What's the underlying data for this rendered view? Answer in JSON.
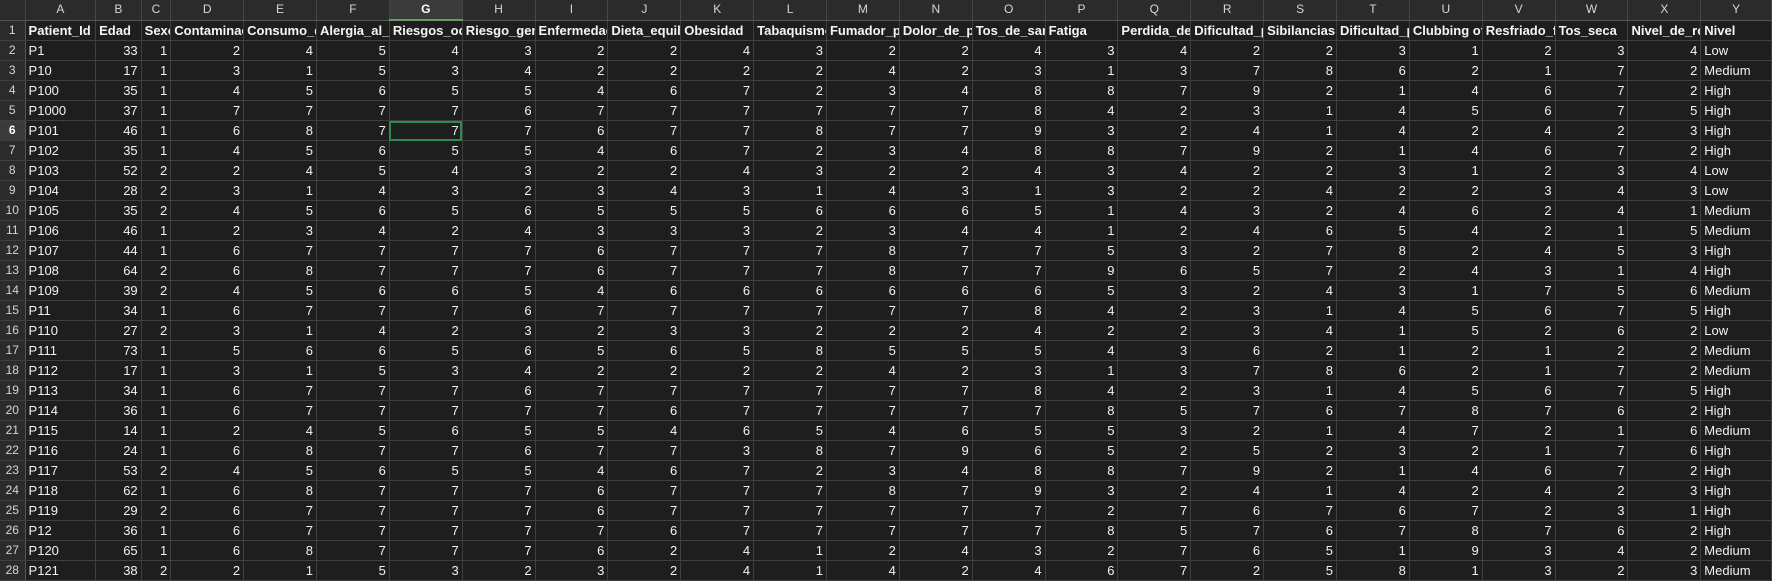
{
  "columns": [
    "A",
    "B",
    "C",
    "D",
    "E",
    "F",
    "G",
    "H",
    "I",
    "J",
    "K",
    "L",
    "M",
    "N",
    "O",
    "P",
    "Q",
    "R",
    "S",
    "T",
    "U",
    "V",
    "W",
    "X",
    "Y"
  ],
  "active_column": "G",
  "active_row": 6,
  "headers": [
    "Patient_Id",
    "Edad",
    "Sexo",
    "Contaminac",
    "Consumo_d",
    "Alergia_al_p",
    "Riesgos_ocu",
    "Riesgo_gen",
    "Enfermedad",
    "Dieta_equili",
    "Obesidad",
    "Tabaquismo",
    "Fumador_p",
    "Dolor_de_p",
    "Tos_de_san",
    "Fatiga",
    "Perdida_de",
    "Dificultad_p",
    "Sibilancias",
    "Dificultad_p",
    "Clubbing of",
    "Resfriado_fr",
    "Tos_seca",
    "Nivel_de_ro",
    "Nivel"
  ],
  "rows": [
    [
      "P1",
      "33",
      "1",
      "2",
      "4",
      "5",
      "4",
      "3",
      "2",
      "2",
      "4",
      "3",
      "2",
      "2",
      "4",
      "3",
      "4",
      "2",
      "2",
      "3",
      "1",
      "2",
      "3",
      "4",
      "Low"
    ],
    [
      "P10",
      "17",
      "1",
      "3",
      "1",
      "5",
      "3",
      "4",
      "2",
      "2",
      "2",
      "2",
      "4",
      "2",
      "3",
      "1",
      "3",
      "7",
      "8",
      "6",
      "2",
      "1",
      "7",
      "2",
      "Medium"
    ],
    [
      "P100",
      "35",
      "1",
      "4",
      "5",
      "6",
      "5",
      "5",
      "4",
      "6",
      "7",
      "2",
      "3",
      "4",
      "8",
      "8",
      "7",
      "9",
      "2",
      "1",
      "4",
      "6",
      "7",
      "2",
      "High"
    ],
    [
      "P1000",
      "37",
      "1",
      "7",
      "7",
      "7",
      "7",
      "6",
      "7",
      "7",
      "7",
      "7",
      "7",
      "7",
      "8",
      "4",
      "2",
      "3",
      "1",
      "4",
      "5",
      "6",
      "7",
      "5",
      "High"
    ],
    [
      "P101",
      "46",
      "1",
      "6",
      "8",
      "7",
      "7",
      "7",
      "6",
      "7",
      "7",
      "8",
      "7",
      "7",
      "9",
      "3",
      "2",
      "4",
      "1",
      "4",
      "2",
      "4",
      "2",
      "3",
      "High"
    ],
    [
      "P102",
      "35",
      "1",
      "4",
      "5",
      "6",
      "5",
      "5",
      "4",
      "6",
      "7",
      "2",
      "3",
      "4",
      "8",
      "8",
      "7",
      "9",
      "2",
      "1",
      "4",
      "6",
      "7",
      "2",
      "High"
    ],
    [
      "P103",
      "52",
      "2",
      "2",
      "4",
      "5",
      "4",
      "3",
      "2",
      "2",
      "4",
      "3",
      "2",
      "2",
      "4",
      "3",
      "4",
      "2",
      "2",
      "3",
      "1",
      "2",
      "3",
      "4",
      "Low"
    ],
    [
      "P104",
      "28",
      "2",
      "3",
      "1",
      "4",
      "3",
      "2",
      "3",
      "4",
      "3",
      "1",
      "4",
      "3",
      "1",
      "3",
      "2",
      "2",
      "4",
      "2",
      "2",
      "3",
      "4",
      "3",
      "Low"
    ],
    [
      "P105",
      "35",
      "2",
      "4",
      "5",
      "6",
      "5",
      "6",
      "5",
      "5",
      "5",
      "6",
      "6",
      "6",
      "5",
      "1",
      "4",
      "3",
      "2",
      "4",
      "6",
      "2",
      "4",
      "1",
      "Medium"
    ],
    [
      "P106",
      "46",
      "1",
      "2",
      "3",
      "4",
      "2",
      "4",
      "3",
      "3",
      "3",
      "2",
      "3",
      "4",
      "4",
      "1",
      "2",
      "4",
      "6",
      "5",
      "4",
      "2",
      "1",
      "5",
      "Medium"
    ],
    [
      "P107",
      "44",
      "1",
      "6",
      "7",
      "7",
      "7",
      "7",
      "6",
      "7",
      "7",
      "7",
      "8",
      "7",
      "7",
      "5",
      "3",
      "2",
      "7",
      "8",
      "2",
      "4",
      "5",
      "3",
      "High"
    ],
    [
      "P108",
      "64",
      "2",
      "6",
      "8",
      "7",
      "7",
      "7",
      "6",
      "7",
      "7",
      "7",
      "8",
      "7",
      "7",
      "9",
      "6",
      "5",
      "7",
      "2",
      "4",
      "3",
      "1",
      "4",
      "High"
    ],
    [
      "P109",
      "39",
      "2",
      "4",
      "5",
      "6",
      "6",
      "5",
      "4",
      "6",
      "6",
      "6",
      "6",
      "6",
      "6",
      "5",
      "3",
      "2",
      "4",
      "3",
      "1",
      "7",
      "5",
      "6",
      "Medium"
    ],
    [
      "P11",
      "34",
      "1",
      "6",
      "7",
      "7",
      "7",
      "6",
      "7",
      "7",
      "7",
      "7",
      "7",
      "7",
      "8",
      "4",
      "2",
      "3",
      "1",
      "4",
      "5",
      "6",
      "7",
      "5",
      "High"
    ],
    [
      "P110",
      "27",
      "2",
      "3",
      "1",
      "4",
      "2",
      "3",
      "2",
      "3",
      "3",
      "2",
      "2",
      "2",
      "4",
      "2",
      "2",
      "3",
      "4",
      "1",
      "5",
      "2",
      "6",
      "2",
      "Low"
    ],
    [
      "P111",
      "73",
      "1",
      "5",
      "6",
      "6",
      "5",
      "6",
      "5",
      "6",
      "5",
      "8",
      "5",
      "5",
      "5",
      "4",
      "3",
      "6",
      "2",
      "1",
      "2",
      "1",
      "2",
      "2",
      "Medium"
    ],
    [
      "P112",
      "17",
      "1",
      "3",
      "1",
      "5",
      "3",
      "4",
      "2",
      "2",
      "2",
      "2",
      "4",
      "2",
      "3",
      "1",
      "3",
      "7",
      "8",
      "6",
      "2",
      "1",
      "7",
      "2",
      "Medium"
    ],
    [
      "P113",
      "34",
      "1",
      "6",
      "7",
      "7",
      "7",
      "6",
      "7",
      "7",
      "7",
      "7",
      "7",
      "7",
      "8",
      "4",
      "2",
      "3",
      "1",
      "4",
      "5",
      "6",
      "7",
      "5",
      "High"
    ],
    [
      "P114",
      "36",
      "1",
      "6",
      "7",
      "7",
      "7",
      "7",
      "7",
      "6",
      "7",
      "7",
      "7",
      "7",
      "7",
      "8",
      "5",
      "7",
      "6",
      "7",
      "8",
      "7",
      "6",
      "2",
      "High"
    ],
    [
      "P115",
      "14",
      "1",
      "2",
      "4",
      "5",
      "6",
      "5",
      "5",
      "4",
      "6",
      "5",
      "4",
      "6",
      "5",
      "5",
      "3",
      "2",
      "1",
      "4",
      "7",
      "2",
      "1",
      "6",
      "Medium"
    ],
    [
      "P116",
      "24",
      "1",
      "6",
      "8",
      "7",
      "7",
      "6",
      "7",
      "7",
      "3",
      "8",
      "7",
      "9",
      "6",
      "5",
      "2",
      "5",
      "2",
      "3",
      "2",
      "1",
      "7",
      "6",
      "High"
    ],
    [
      "P117",
      "53",
      "2",
      "4",
      "5",
      "6",
      "5",
      "5",
      "4",
      "6",
      "7",
      "2",
      "3",
      "4",
      "8",
      "8",
      "7",
      "9",
      "2",
      "1",
      "4",
      "6",
      "7",
      "2",
      "High"
    ],
    [
      "P118",
      "62",
      "1",
      "6",
      "8",
      "7",
      "7",
      "7",
      "6",
      "7",
      "7",
      "7",
      "8",
      "7",
      "9",
      "3",
      "2",
      "4",
      "1",
      "4",
      "2",
      "4",
      "2",
      "3",
      "High"
    ],
    [
      "P119",
      "29",
      "2",
      "6",
      "7",
      "7",
      "7",
      "7",
      "6",
      "7",
      "7",
      "7",
      "7",
      "7",
      "7",
      "2",
      "7",
      "6",
      "7",
      "6",
      "7",
      "2",
      "3",
      "1",
      "High"
    ],
    [
      "P12",
      "36",
      "1",
      "6",
      "7",
      "7",
      "7",
      "7",
      "7",
      "6",
      "7",
      "7",
      "7",
      "7",
      "7",
      "8",
      "5",
      "7",
      "6",
      "7",
      "8",
      "7",
      "6",
      "2",
      "High"
    ],
    [
      "P120",
      "65",
      "1",
      "6",
      "8",
      "7",
      "7",
      "7",
      "6",
      "2",
      "4",
      "1",
      "2",
      "4",
      "3",
      "2",
      "7",
      "6",
      "5",
      "1",
      "9",
      "3",
      "4",
      "2",
      "Medium"
    ],
    [
      "P121",
      "38",
      "2",
      "2",
      "1",
      "5",
      "3",
      "2",
      "3",
      "2",
      "4",
      "1",
      "4",
      "2",
      "4",
      "6",
      "7",
      "2",
      "5",
      "8",
      "1",
      "3",
      "2",
      "3",
      "Medium"
    ]
  ]
}
